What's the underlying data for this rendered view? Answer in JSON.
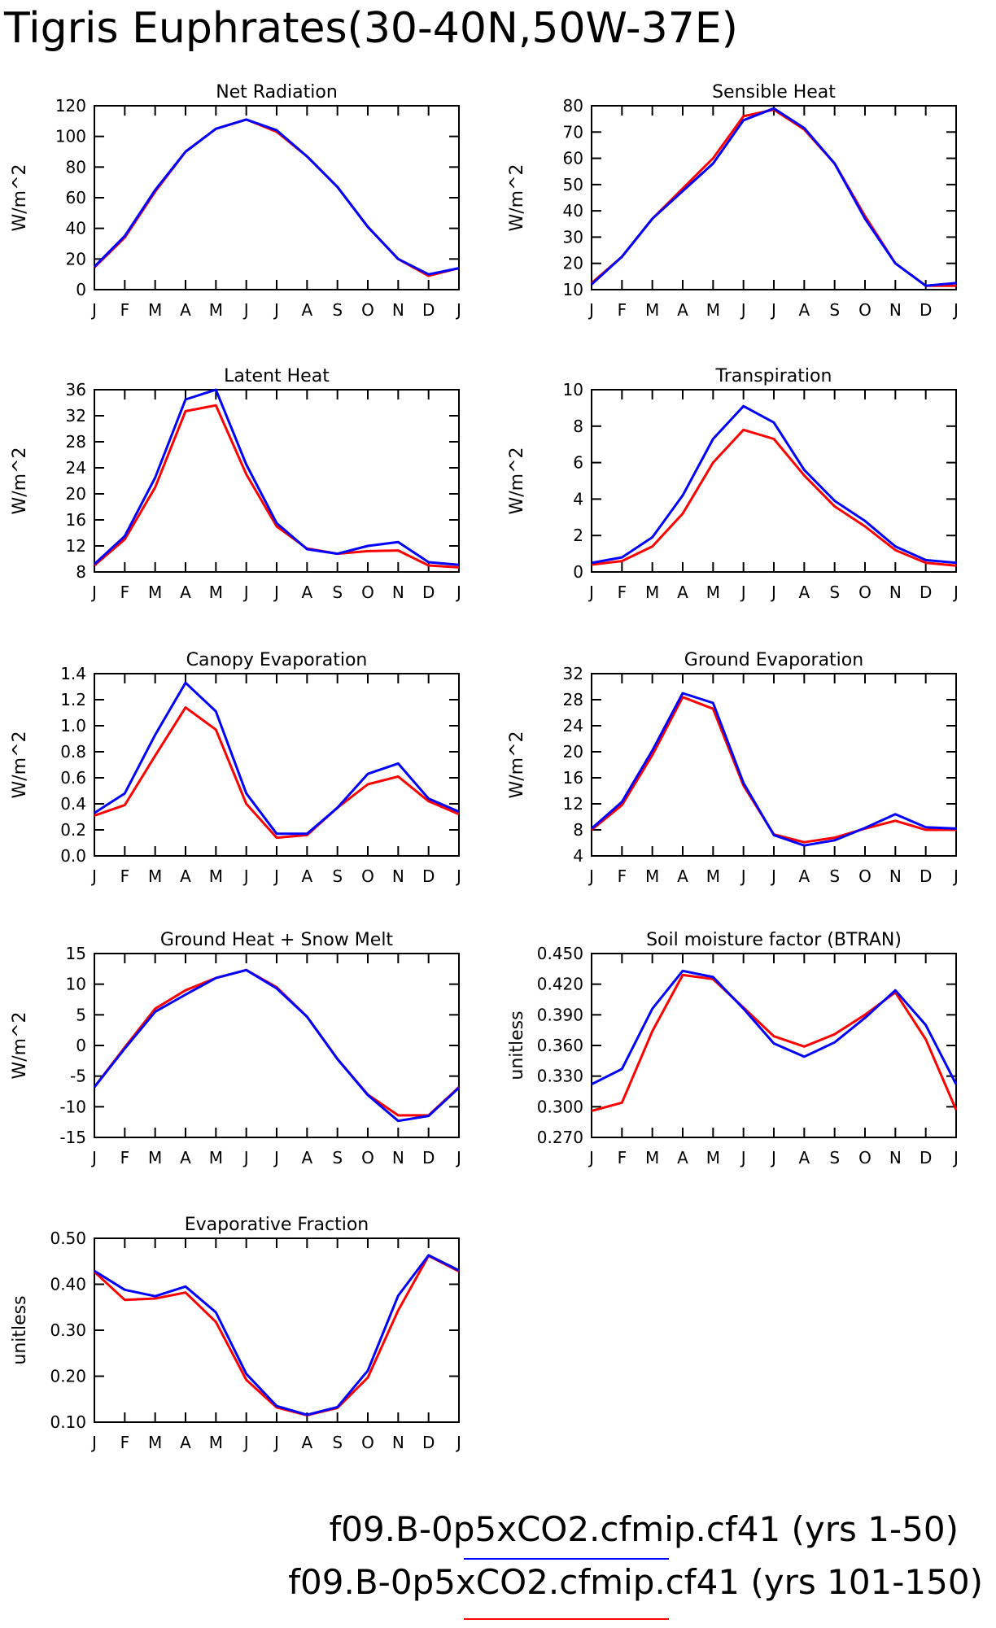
{
  "page_title": "Tigris Euphrates(30-40N,50W-37E)",
  "months": [
    "J",
    "F",
    "M",
    "A",
    "M",
    "J",
    "J",
    "A",
    "S",
    "O",
    "N",
    "D",
    "J"
  ],
  "colors": {
    "run1": "#0000ff",
    "run2": "#ff0000"
  },
  "legend": [
    {
      "label": "f09.B-0p5xCO2.cfmip.cf41 (yrs 1-50)",
      "color": "#0000ff"
    },
    {
      "label": "f09.B-0p5xCO2.cfmip.cf41 (yrs 101-150)",
      "color": "#ff0000"
    }
  ],
  "chart_data": [
    {
      "type": "line",
      "title": "Net Radiation",
      "ylabel": "W/m^2",
      "ylim": [
        0,
        120
      ],
      "yticks": [
        0,
        20,
        40,
        60,
        80,
        100,
        120
      ],
      "ytick_labels": [
        "0",
        "20",
        "40",
        "60",
        "80",
        "100",
        "120"
      ],
      "categories": [
        "J",
        "F",
        "M",
        "A",
        "M",
        "J",
        "J",
        "A",
        "S",
        "O",
        "N",
        "D",
        "J"
      ],
      "series": [
        {
          "color": "#ff0000",
          "values": [
            14.5,
            34,
            64,
            90,
            105,
            111,
            103,
            87,
            67,
            41,
            20,
            9,
            14
          ]
        },
        {
          "color": "#0000ff",
          "values": [
            15,
            35,
            65,
            90,
            105,
            111,
            104,
            87,
            67,
            41,
            20,
            10,
            14
          ]
        }
      ]
    },
    {
      "type": "line",
      "title": "Sensible Heat",
      "ylabel": "W/m^2",
      "ylim": [
        10,
        80
      ],
      "yticks": [
        10,
        20,
        30,
        40,
        50,
        60,
        70,
        80
      ],
      "ytick_labels": [
        "10",
        "20",
        "30",
        "40",
        "50",
        "60",
        "70",
        "80"
      ],
      "categories": [
        "J",
        "F",
        "M",
        "A",
        "M",
        "J",
        "J",
        "A",
        "S",
        "O",
        "N",
        "D",
        "J"
      ],
      "series": [
        {
          "color": "#ff0000",
          "values": [
            12.5,
            22.5,
            37,
            48.5,
            60,
            76,
            78.5,
            71,
            58,
            38,
            20,
            11.5,
            11.5
          ]
        },
        {
          "color": "#0000ff",
          "values": [
            12,
            22.5,
            37,
            47.5,
            58,
            74.5,
            79,
            71.5,
            58,
            37,
            20,
            11.5,
            12.5
          ]
        }
      ]
    },
    {
      "type": "line",
      "title": "Latent Heat",
      "ylabel": "W/m^2",
      "ylim": [
        8,
        36
      ],
      "yticks": [
        8,
        12,
        16,
        20,
        24,
        28,
        32,
        36
      ],
      "ytick_labels": [
        "8",
        "12",
        "16",
        "20",
        "24",
        "28",
        "32",
        "36"
      ],
      "categories": [
        "J",
        "F",
        "M",
        "A",
        "M",
        "J",
        "J",
        "A",
        "S",
        "O",
        "N",
        "D",
        "J"
      ],
      "series": [
        {
          "color": "#ff0000",
          "values": [
            9,
            13,
            21,
            32.7,
            33.6,
            23,
            15,
            11.6,
            10.8,
            11.2,
            11.3,
            9,
            8.7
          ]
        },
        {
          "color": "#0000ff",
          "values": [
            9.2,
            13.5,
            22.5,
            34.5,
            36,
            24.5,
            15.5,
            11.5,
            10.8,
            12,
            12.6,
            9.5,
            9.1
          ]
        }
      ]
    },
    {
      "type": "line",
      "title": "Transpiration",
      "ylabel": "W/m^2",
      "ylim": [
        0,
        10
      ],
      "yticks": [
        0,
        2,
        4,
        6,
        8,
        10
      ],
      "ytick_labels": [
        "0",
        "2",
        "4",
        "6",
        "8",
        "10"
      ],
      "categories": [
        "J",
        "F",
        "M",
        "A",
        "M",
        "J",
        "J",
        "A",
        "S",
        "O",
        "N",
        "D",
        "J"
      ],
      "series": [
        {
          "color": "#ff0000",
          "values": [
            0.4,
            0.6,
            1.4,
            3.2,
            6.0,
            7.8,
            7.3,
            5.3,
            3.6,
            2.5,
            1.2,
            0.5,
            0.35
          ]
        },
        {
          "color": "#0000ff",
          "values": [
            0.5,
            0.8,
            1.9,
            4.2,
            7.3,
            9.1,
            8.2,
            5.6,
            3.9,
            2.8,
            1.4,
            0.65,
            0.5
          ]
        }
      ]
    },
    {
      "type": "line",
      "title": "Canopy Evaporation",
      "ylabel": "W/m^2",
      "ylim": [
        0,
        1.4
      ],
      "yticks": [
        0,
        0.2,
        0.4,
        0.6,
        0.8,
        1.0,
        1.2,
        1.4
      ],
      "ytick_labels": [
        "0.0",
        "0.2",
        "0.4",
        "0.6",
        "0.8",
        "1.0",
        "1.2",
        "1.4"
      ],
      "categories": [
        "J",
        "F",
        "M",
        "A",
        "M",
        "J",
        "J",
        "A",
        "S",
        "O",
        "N",
        "D",
        "J"
      ],
      "series": [
        {
          "color": "#ff0000",
          "values": [
            0.31,
            0.39,
            0.77,
            1.14,
            0.97,
            0.4,
            0.14,
            0.16,
            0.37,
            0.55,
            0.61,
            0.42,
            0.32
          ]
        },
        {
          "color": "#0000ff",
          "values": [
            0.33,
            0.48,
            0.93,
            1.33,
            1.11,
            0.48,
            0.17,
            0.17,
            0.37,
            0.63,
            0.71,
            0.44,
            0.34
          ]
        }
      ]
    },
    {
      "type": "line",
      "title": "Ground Evaporation",
      "ylabel": "W/m^2",
      "ylim": [
        4,
        32
      ],
      "yticks": [
        4,
        8,
        12,
        16,
        20,
        24,
        28,
        32
      ],
      "ytick_labels": [
        "4",
        "8",
        "12",
        "16",
        "20",
        "24",
        "28",
        "32"
      ],
      "categories": [
        "J",
        "F",
        "M",
        "A",
        "M",
        "J",
        "J",
        "A",
        "S",
        "O",
        "N",
        "D",
        "J"
      ],
      "series": [
        {
          "color": "#ff0000",
          "values": [
            8,
            11.8,
            19.5,
            28.4,
            26.6,
            14.8,
            7.3,
            6.1,
            6.8,
            8.2,
            9.4,
            8,
            8
          ]
        },
        {
          "color": "#0000ff",
          "values": [
            8.2,
            12.3,
            20.2,
            29,
            27.5,
            15.2,
            7.2,
            5.6,
            6.4,
            8.3,
            10.4,
            8.4,
            8.2
          ]
        }
      ]
    },
    {
      "type": "line",
      "title": "Ground Heat + Snow Melt",
      "ylabel": "W/m^2",
      "ylim": [
        -15,
        15
      ],
      "yticks": [
        -15,
        -10,
        -5,
        0,
        5,
        10,
        15
      ],
      "ytick_labels": [
        "-15",
        "-10",
        "-5",
        "0",
        "5",
        "10",
        "15"
      ],
      "categories": [
        "J",
        "F",
        "M",
        "A",
        "M",
        "J",
        "J",
        "A",
        "S",
        "O",
        "N",
        "D",
        "J"
      ],
      "series": [
        {
          "color": "#ff0000",
          "values": [
            -6.8,
            -0.3,
            6,
            9,
            11,
            12.3,
            9.5,
            4.7,
            -2.2,
            -8,
            -11.4,
            -11.4,
            -6.8
          ]
        },
        {
          "color": "#0000ff",
          "values": [
            -6.8,
            -0.5,
            5.5,
            8.3,
            11,
            12.3,
            9.3,
            4.7,
            -2.2,
            -8.1,
            -12.3,
            -11.5,
            -6.9
          ]
        }
      ]
    },
    {
      "type": "line",
      "title": "Soil moisture factor (BTRAN)",
      "ylabel": "unitless",
      "ylim": [
        0.27,
        0.45
      ],
      "yticks": [
        0.27,
        0.3,
        0.33,
        0.36,
        0.39,
        0.42,
        0.45
      ],
      "ytick_labels": [
        "0.270",
        "0.300",
        "0.330",
        "0.360",
        "0.390",
        "0.420",
        "0.450"
      ],
      "categories": [
        "J",
        "F",
        "M",
        "A",
        "M",
        "J",
        "J",
        "A",
        "S",
        "O",
        "N",
        "D",
        "J"
      ],
      "series": [
        {
          "color": "#ff0000",
          "values": [
            0.296,
            0.304,
            0.374,
            0.429,
            0.425,
            0.397,
            0.369,
            0.359,
            0.371,
            0.39,
            0.412,
            0.366,
            0.297
          ]
        },
        {
          "color": "#0000ff",
          "values": [
            0.322,
            0.337,
            0.396,
            0.433,
            0.427,
            0.396,
            0.362,
            0.349,
            0.363,
            0.387,
            0.414,
            0.38,
            0.322
          ]
        }
      ]
    },
    {
      "type": "line",
      "title": "Evaporative Fraction",
      "ylabel": "unitless",
      "ylim": [
        0.1,
        0.5
      ],
      "yticks": [
        0.1,
        0.2,
        0.3,
        0.4,
        0.5
      ],
      "ytick_labels": [
        "0.10",
        "0.20",
        "0.30",
        "0.40",
        "0.50"
      ],
      "categories": [
        "J",
        "F",
        "M",
        "A",
        "M",
        "J",
        "J",
        "A",
        "S",
        "O",
        "N",
        "D",
        "J"
      ],
      "series": [
        {
          "color": "#ff0000",
          "values": [
            0.427,
            0.366,
            0.369,
            0.382,
            0.318,
            0.192,
            0.132,
            0.115,
            0.131,
            0.197,
            0.343,
            0.462,
            0.428
          ]
        },
        {
          "color": "#0000ff",
          "values": [
            0.429,
            0.388,
            0.374,
            0.395,
            0.339,
            0.205,
            0.135,
            0.116,
            0.133,
            0.212,
            0.375,
            0.463,
            0.43
          ]
        }
      ]
    }
  ]
}
